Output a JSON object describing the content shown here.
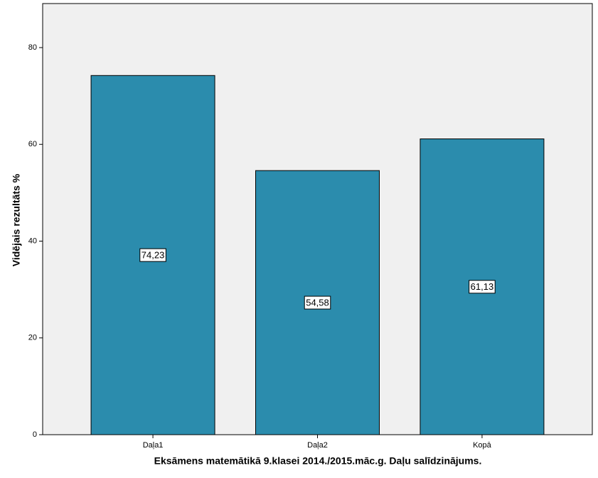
{
  "chart_data": {
    "type": "bar",
    "x_label": "Eksāmens matemātikā 9.klasei 2014./2015.māc.g. Daļu salīdzinājums.",
    "y_label": "Vidējais rezultāts %",
    "categories": [
      "Daļa1",
      "Daļa2",
      "Kopā"
    ],
    "values": [
      74.23,
      54.58,
      61.13
    ],
    "value_labels": [
      "74,23",
      "54,58",
      "61,13"
    ],
    "color": "#2b8cad",
    "ylim": [
      0,
      89.1
    ],
    "yticks": [
      0,
      20,
      40,
      60,
      80
    ],
    "grid": false
  }
}
